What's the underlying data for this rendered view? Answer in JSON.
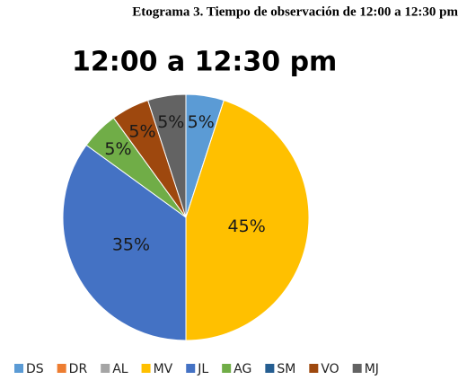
{
  "chart_data": {
    "type": "pie",
    "page_title": "Etograma 3. Tiempo de observación de 12:00 a 12:30 pm",
    "title": "12:00 a 12:30 pm",
    "categories": [
      "DS",
      "DR",
      "AL",
      "MV",
      "JL",
      "AG",
      "SM",
      "VO",
      "MJ"
    ],
    "values": [
      5,
      0,
      0,
      45,
      35,
      5,
      0,
      5,
      5
    ],
    "value_labels": [
      "5%",
      null,
      null,
      "45%",
      "35%",
      "5%",
      null,
      "5%",
      "5%"
    ],
    "colors": [
      "#5b9bd5",
      "#ed7d31",
      "#a5a5a5",
      "#ffc000",
      "#4472c4",
      "#70ad47",
      "#255e91",
      "#9e480e",
      "#636363"
    ],
    "legend": "bottom"
  }
}
